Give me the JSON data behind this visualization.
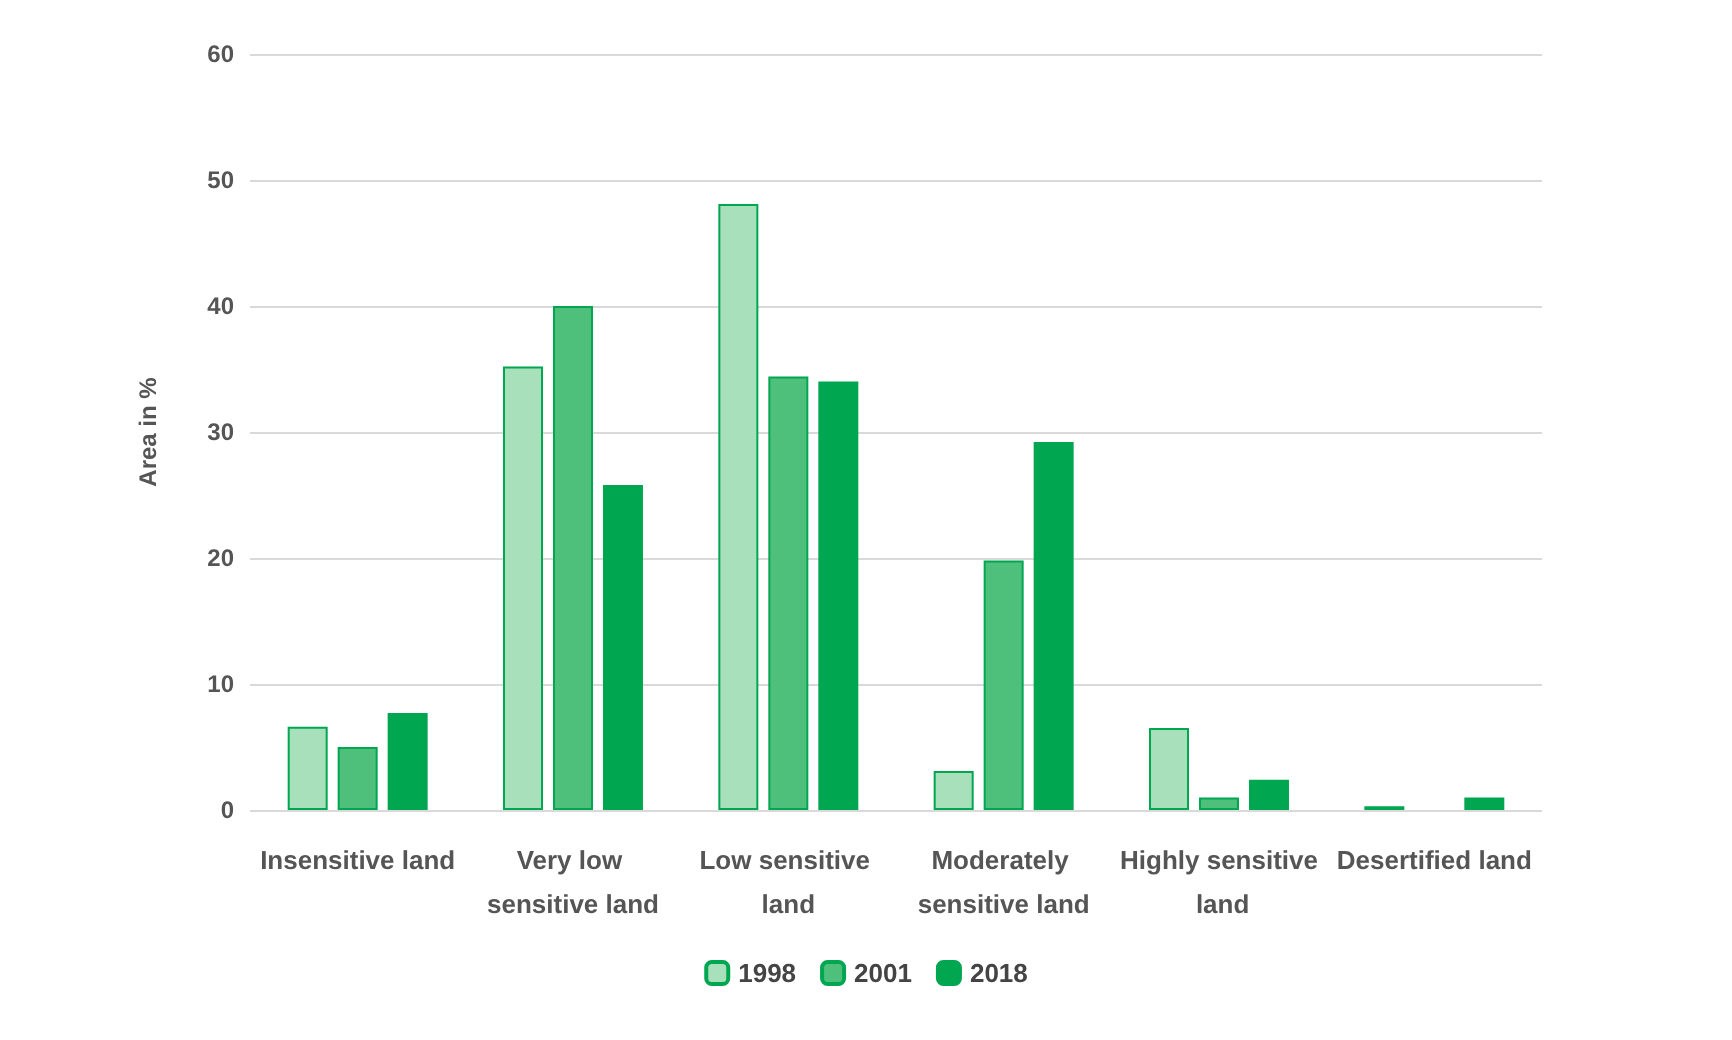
{
  "chart_data": {
    "type": "bar",
    "ylabel": "Area in %",
    "categories": [
      "Insensitive land",
      "Very low sensitive land",
      "Low sensitive land",
      "Moderately sensitive land",
      "Highly sensitive land",
      "Desertified land"
    ],
    "series": [
      {
        "name": "1998",
        "color": "#a8e0bc",
        "values": [
          6.6,
          35.2,
          48.1,
          3.1,
          6.5,
          0.3
        ]
      },
      {
        "name": "2001",
        "color": "#4fc07c",
        "values": [
          5.0,
          40.0,
          34.4,
          19.8,
          1.0,
          null
        ]
      },
      {
        "name": "2018",
        "color": "#00a650",
        "values": [
          7.7,
          25.8,
          34.0,
          29.2,
          2.4,
          1.0
        ]
      }
    ],
    "ylim": [
      0,
      60
    ],
    "yticks": [
      0,
      10,
      20,
      30,
      40,
      50,
      60
    ],
    "grid": "y",
    "legend": "bottom"
  }
}
